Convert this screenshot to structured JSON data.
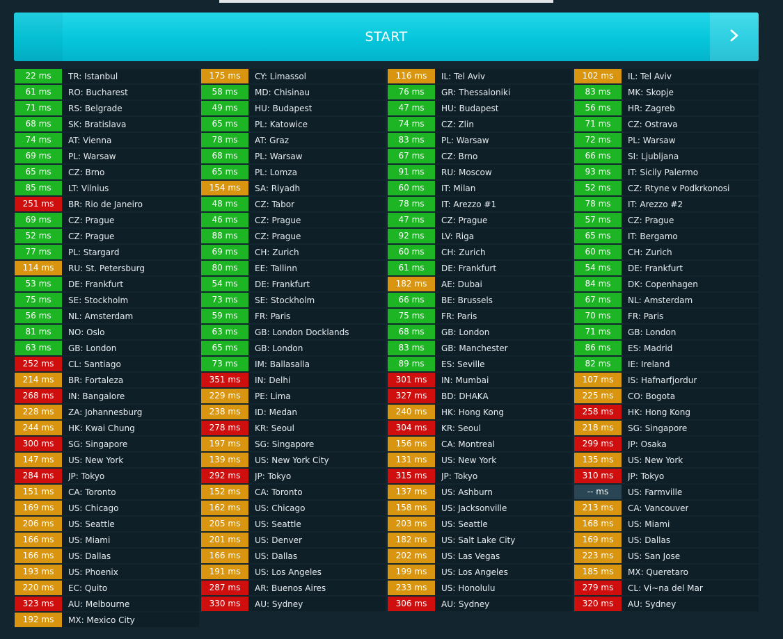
{
  "start": {
    "label": "START",
    "arrow_icon": "chevron-right-icon"
  },
  "colors": {
    "green": "#1db524",
    "orange": "#d99510",
    "red": "#cf0e0e",
    "none": "#2a4654",
    "accent": "#06c6dc"
  },
  "columns": [
    [
      {
        "ms": "22 ms",
        "loc": "TR: Istanbul",
        "s": "g"
      },
      {
        "ms": "61 ms",
        "loc": "RO: Bucharest",
        "s": "g"
      },
      {
        "ms": "71 ms",
        "loc": "RS: Belgrade",
        "s": "g"
      },
      {
        "ms": "68 ms",
        "loc": "SK: Bratislava",
        "s": "g"
      },
      {
        "ms": "74 ms",
        "loc": "AT: Vienna",
        "s": "g"
      },
      {
        "ms": "69 ms",
        "loc": "PL: Warsaw",
        "s": "g"
      },
      {
        "ms": "65 ms",
        "loc": "CZ: Brno",
        "s": "g"
      },
      {
        "ms": "85 ms",
        "loc": "LT: Vilnius",
        "s": "g"
      },
      {
        "ms": "251 ms",
        "loc": "BR: Rio de Janeiro",
        "s": "r"
      },
      {
        "ms": "69 ms",
        "loc": "CZ: Prague",
        "s": "g"
      },
      {
        "ms": "52 ms",
        "loc": "CZ: Prague",
        "s": "g"
      },
      {
        "ms": "77 ms",
        "loc": "PL: Stargard",
        "s": "g"
      },
      {
        "ms": "114 ms",
        "loc": "RU: St. Petersburg",
        "s": "o"
      },
      {
        "ms": "53 ms",
        "loc": "DE: Frankfurt",
        "s": "g"
      },
      {
        "ms": "75 ms",
        "loc": "SE: Stockholm",
        "s": "g"
      },
      {
        "ms": "56 ms",
        "loc": "NL: Amsterdam",
        "s": "g"
      },
      {
        "ms": "81 ms",
        "loc": "NO: Oslo",
        "s": "g"
      },
      {
        "ms": "63 ms",
        "loc": "GB: London",
        "s": "g"
      },
      {
        "ms": "252 ms",
        "loc": "CL: Santiago",
        "s": "r"
      },
      {
        "ms": "214 ms",
        "loc": "BR: Fortaleza",
        "s": "o"
      },
      {
        "ms": "268 ms",
        "loc": "IN: Bangalore",
        "s": "r"
      },
      {
        "ms": "228 ms",
        "loc": "ZA: Johannesburg",
        "s": "o"
      },
      {
        "ms": "244 ms",
        "loc": "HK: Kwai Chung",
        "s": "o"
      },
      {
        "ms": "300 ms",
        "loc": "SG: Singapore",
        "s": "r"
      },
      {
        "ms": "147 ms",
        "loc": "US: New York",
        "s": "o"
      },
      {
        "ms": "284 ms",
        "loc": "JP: Tokyo",
        "s": "r"
      },
      {
        "ms": "151 ms",
        "loc": "CA: Toronto",
        "s": "o"
      },
      {
        "ms": "169 ms",
        "loc": "US: Chicago",
        "s": "o"
      },
      {
        "ms": "206 ms",
        "loc": "US: Seattle",
        "s": "o"
      },
      {
        "ms": "166 ms",
        "loc": "US: Miami",
        "s": "o"
      },
      {
        "ms": "166 ms",
        "loc": "US: Dallas",
        "s": "o"
      },
      {
        "ms": "193 ms",
        "loc": "US: Phoenix",
        "s": "o"
      },
      {
        "ms": "220 ms",
        "loc": "EC: Quito",
        "s": "o"
      },
      {
        "ms": "323 ms",
        "loc": "AU: Melbourne",
        "s": "r"
      },
      {
        "ms": "192 ms",
        "loc": "MX: Mexico City",
        "s": "o"
      }
    ],
    [
      {
        "ms": "175 ms",
        "loc": "CY: Limassol",
        "s": "o"
      },
      {
        "ms": "58 ms",
        "loc": "MD: Chisinau",
        "s": "g"
      },
      {
        "ms": "49 ms",
        "loc": "HU: Budapest",
        "s": "g"
      },
      {
        "ms": "65 ms",
        "loc": "PL: Katowice",
        "s": "g"
      },
      {
        "ms": "78 ms",
        "loc": "AT: Graz",
        "s": "g"
      },
      {
        "ms": "68 ms",
        "loc": "PL: Warsaw",
        "s": "g"
      },
      {
        "ms": "65 ms",
        "loc": "PL: Lomza",
        "s": "g"
      },
      {
        "ms": "154 ms",
        "loc": "SA: Riyadh",
        "s": "o"
      },
      {
        "ms": "48 ms",
        "loc": "CZ: Tabor",
        "s": "g"
      },
      {
        "ms": "46 ms",
        "loc": "CZ: Prague",
        "s": "g"
      },
      {
        "ms": "88 ms",
        "loc": "CZ: Prague",
        "s": "g"
      },
      {
        "ms": "69 ms",
        "loc": "CH: Zurich",
        "s": "g"
      },
      {
        "ms": "80 ms",
        "loc": "EE: Tallinn",
        "s": "g"
      },
      {
        "ms": "54 ms",
        "loc": "DE: Frankfurt",
        "s": "g"
      },
      {
        "ms": "73 ms",
        "loc": "SE: Stockholm",
        "s": "g"
      },
      {
        "ms": "59 ms",
        "loc": "FR: Paris",
        "s": "g"
      },
      {
        "ms": "63 ms",
        "loc": "GB: London Docklands",
        "s": "g"
      },
      {
        "ms": "65 ms",
        "loc": "GB: London",
        "s": "g"
      },
      {
        "ms": "73 ms",
        "loc": "IM: Ballasalla",
        "s": "g"
      },
      {
        "ms": "351 ms",
        "loc": "IN: Delhi",
        "s": "r"
      },
      {
        "ms": "229 ms",
        "loc": "PE: Lima",
        "s": "o"
      },
      {
        "ms": "238 ms",
        "loc": "ID: Medan",
        "s": "o"
      },
      {
        "ms": "278 ms",
        "loc": "KR: Seoul",
        "s": "r"
      },
      {
        "ms": "197 ms",
        "loc": "SG: Singapore",
        "s": "o"
      },
      {
        "ms": "139 ms",
        "loc": "US: New York City",
        "s": "o"
      },
      {
        "ms": "292 ms",
        "loc": "JP: Tokyo",
        "s": "r"
      },
      {
        "ms": "152 ms",
        "loc": "CA: Toronto",
        "s": "o"
      },
      {
        "ms": "162 ms",
        "loc": "US: Chicago",
        "s": "o"
      },
      {
        "ms": "205 ms",
        "loc": "US: Seattle",
        "s": "o"
      },
      {
        "ms": "201 ms",
        "loc": "US: Denver",
        "s": "o"
      },
      {
        "ms": "166 ms",
        "loc": "US: Dallas",
        "s": "o"
      },
      {
        "ms": "191 ms",
        "loc": "US: Los Angeles",
        "s": "o"
      },
      {
        "ms": "287 ms",
        "loc": "AR: Buenos Aires",
        "s": "r"
      },
      {
        "ms": "330 ms",
        "loc": "AU: Sydney",
        "s": "r"
      }
    ],
    [
      {
        "ms": "116 ms",
        "loc": "IL: Tel Aviv",
        "s": "o"
      },
      {
        "ms": "76 ms",
        "loc": "GR: Thessaloniki",
        "s": "g"
      },
      {
        "ms": "47 ms",
        "loc": "HU: Budapest",
        "s": "g"
      },
      {
        "ms": "74 ms",
        "loc": "CZ: Zlin",
        "s": "g"
      },
      {
        "ms": "83 ms",
        "loc": "PL: Warsaw",
        "s": "g"
      },
      {
        "ms": "67 ms",
        "loc": "CZ: Brno",
        "s": "g"
      },
      {
        "ms": "91 ms",
        "loc": "RU: Moscow",
        "s": "g"
      },
      {
        "ms": "60 ms",
        "loc": "IT: Milan",
        "s": "g"
      },
      {
        "ms": "78 ms",
        "loc": "IT: Arezzo #1",
        "s": "g"
      },
      {
        "ms": "47 ms",
        "loc": "CZ: Prague",
        "s": "g"
      },
      {
        "ms": "92 ms",
        "loc": "LV: Riga",
        "s": "g"
      },
      {
        "ms": "60 ms",
        "loc": "CH: Zurich",
        "s": "g"
      },
      {
        "ms": "61 ms",
        "loc": "DE: Frankfurt",
        "s": "g"
      },
      {
        "ms": "182 ms",
        "loc": "AE: Dubai",
        "s": "o"
      },
      {
        "ms": "66 ms",
        "loc": "BE: Brussels",
        "s": "g"
      },
      {
        "ms": "75 ms",
        "loc": "FR: Paris",
        "s": "g"
      },
      {
        "ms": "68 ms",
        "loc": "GB: London",
        "s": "g"
      },
      {
        "ms": "83 ms",
        "loc": "GB: Manchester",
        "s": "g"
      },
      {
        "ms": "89 ms",
        "loc": "ES: Seville",
        "s": "g"
      },
      {
        "ms": "301 ms",
        "loc": "IN: Mumbai",
        "s": "r"
      },
      {
        "ms": "327 ms",
        "loc": "BD: DHAKA",
        "s": "r"
      },
      {
        "ms": "240 ms",
        "loc": "HK: Hong Kong",
        "s": "o"
      },
      {
        "ms": "304 ms",
        "loc": "KR: Seoul",
        "s": "r"
      },
      {
        "ms": "156 ms",
        "loc": "CA: Montreal",
        "s": "o"
      },
      {
        "ms": "131 ms",
        "loc": "US: New York",
        "s": "o"
      },
      {
        "ms": "315 ms",
        "loc": "JP: Tokyo",
        "s": "r"
      },
      {
        "ms": "137 ms",
        "loc": "US: Ashburn",
        "s": "o"
      },
      {
        "ms": "158 ms",
        "loc": "US: Jacksonville",
        "s": "o"
      },
      {
        "ms": "203 ms",
        "loc": "US: Seattle",
        "s": "o"
      },
      {
        "ms": "182 ms",
        "loc": "US: Salt Lake City",
        "s": "o"
      },
      {
        "ms": "202 ms",
        "loc": "US: Las Vegas",
        "s": "o"
      },
      {
        "ms": "199 ms",
        "loc": "US: Los Angeles",
        "s": "o"
      },
      {
        "ms": "233 ms",
        "loc": "US: Honolulu",
        "s": "o"
      },
      {
        "ms": "306 ms",
        "loc": "AU: Sydney",
        "s": "r"
      }
    ],
    [
      {
        "ms": "102 ms",
        "loc": "IL: Tel Aviv",
        "s": "o"
      },
      {
        "ms": "83 ms",
        "loc": "MK: Skopje",
        "s": "g"
      },
      {
        "ms": "56 ms",
        "loc": "HR: Zagreb",
        "s": "g"
      },
      {
        "ms": "71 ms",
        "loc": "CZ: Ostrava",
        "s": "g"
      },
      {
        "ms": "72 ms",
        "loc": "PL: Warsaw",
        "s": "g"
      },
      {
        "ms": "66 ms",
        "loc": "SI: Ljubljana",
        "s": "g"
      },
      {
        "ms": "93 ms",
        "loc": "IT: Sicily Palermo",
        "s": "g"
      },
      {
        "ms": "52 ms",
        "loc": "CZ: Rtyne v Podkrkonosi",
        "s": "g"
      },
      {
        "ms": "78 ms",
        "loc": "IT: Arezzo #2",
        "s": "g"
      },
      {
        "ms": "57 ms",
        "loc": "CZ: Prague",
        "s": "g"
      },
      {
        "ms": "65 ms",
        "loc": "IT: Bergamo",
        "s": "g"
      },
      {
        "ms": "60 ms",
        "loc": "CH: Zurich",
        "s": "g"
      },
      {
        "ms": "54 ms",
        "loc": "DE: Frankfurt",
        "s": "g"
      },
      {
        "ms": "84 ms",
        "loc": "DK: Copenhagen",
        "s": "g"
      },
      {
        "ms": "67 ms",
        "loc": "NL: Amsterdam",
        "s": "g"
      },
      {
        "ms": "70 ms",
        "loc": "FR: Paris",
        "s": "g"
      },
      {
        "ms": "71 ms",
        "loc": "GB: London",
        "s": "g"
      },
      {
        "ms": "86 ms",
        "loc": "ES: Madrid",
        "s": "g"
      },
      {
        "ms": "82 ms",
        "loc": "IE: Ireland",
        "s": "g"
      },
      {
        "ms": "107 ms",
        "loc": "IS: Hafnarfjordur",
        "s": "o"
      },
      {
        "ms": "225 ms",
        "loc": "CO: Bogota",
        "s": "o"
      },
      {
        "ms": "258 ms",
        "loc": "HK: Hong Kong",
        "s": "r"
      },
      {
        "ms": "218 ms",
        "loc": "SG: Singapore",
        "s": "o"
      },
      {
        "ms": "299 ms",
        "loc": "JP: Osaka",
        "s": "r"
      },
      {
        "ms": "135 ms",
        "loc": "US: New York",
        "s": "o"
      },
      {
        "ms": "310 ms",
        "loc": "JP: Tokyo",
        "s": "r"
      },
      {
        "ms": "-- ms",
        "loc": "US: Farmville",
        "s": "n"
      },
      {
        "ms": "213 ms",
        "loc": "CA: Vancouver",
        "s": "o"
      },
      {
        "ms": "168 ms",
        "loc": "US: Miami",
        "s": "o"
      },
      {
        "ms": "169 ms",
        "loc": "US: Dallas",
        "s": "o"
      },
      {
        "ms": "223 ms",
        "loc": "US: San Jose",
        "s": "o"
      },
      {
        "ms": "185 ms",
        "loc": "MX: Queretaro",
        "s": "o"
      },
      {
        "ms": "279 ms",
        "loc": "CL: Vi~na del Mar",
        "s": "r"
      },
      {
        "ms": "320 ms",
        "loc": "AU: Sydney",
        "s": "r"
      }
    ]
  ]
}
